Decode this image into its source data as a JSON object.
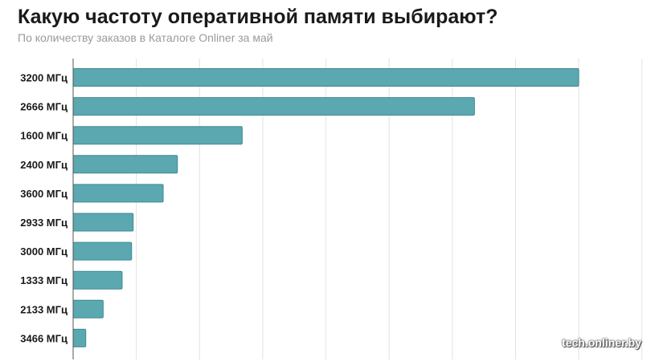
{
  "chart_data": {
    "type": "bar",
    "orientation": "horizontal",
    "title": "Какую частоту оперативной памяти выбирают?",
    "subtitle": "По количеству заказов в Каталоге Onliner за май",
    "categories": [
      "3200 МГц",
      "2666 МГц",
      "1600 МГц",
      "2400 МГц",
      "3600 МГц",
      "2933 МГц",
      "3000 МГц",
      "1333 МГц",
      "2133 МГц",
      "3466 МГц"
    ],
    "values": [
      32.0,
      25.4,
      10.7,
      6.6,
      5.7,
      3.8,
      3.7,
      3.1,
      1.9,
      0.8
    ],
    "xlim": [
      0,
      36
    ],
    "grid": true,
    "bar_color": "#5ba8b1",
    "bar_edge_color": "#3e8a94"
  },
  "watermark": "tech.onliner.by"
}
